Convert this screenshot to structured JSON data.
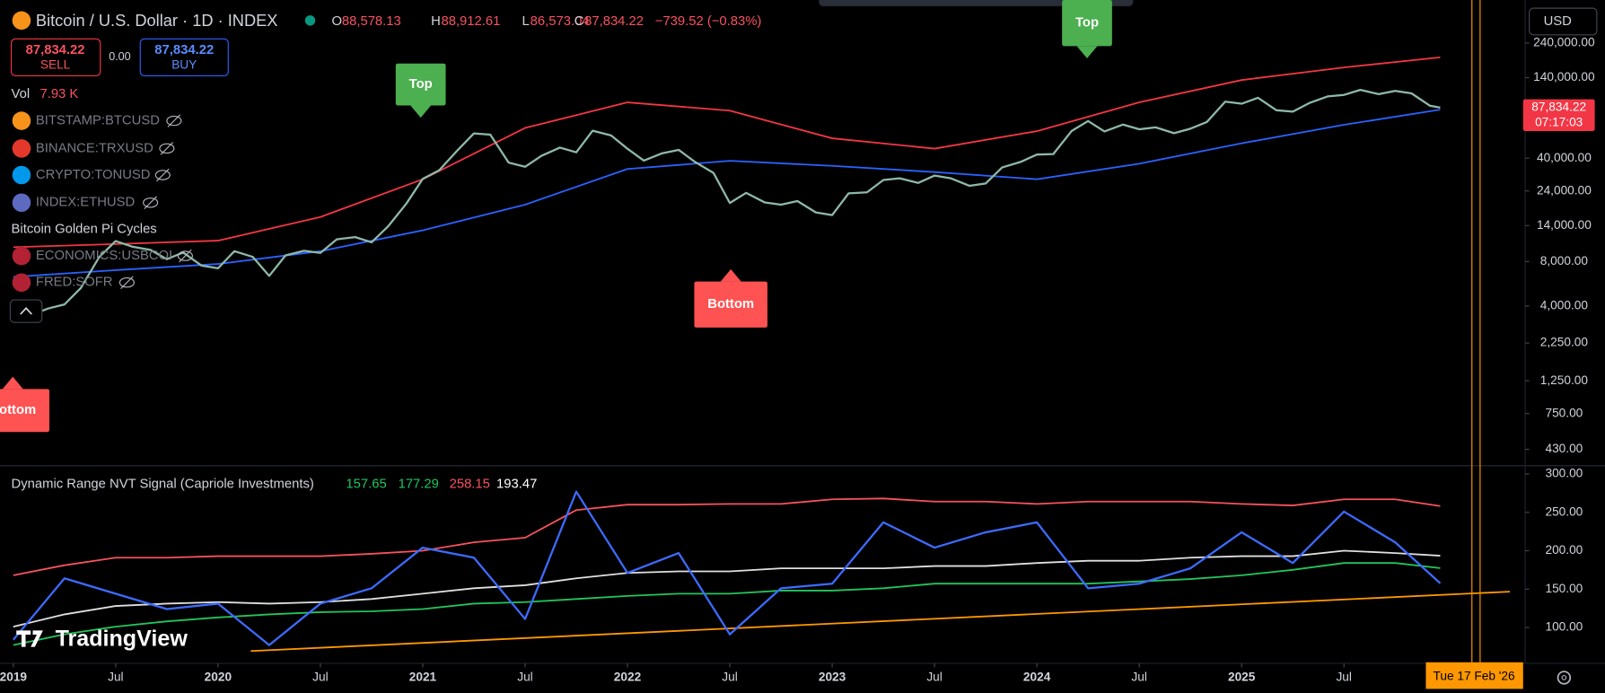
{
  "header": {
    "symbol": "Bitcoin / U.S. Dollar · 1D · INDEX",
    "open_label": "O",
    "open": "88,578.13",
    "high_label": "H",
    "high": "88,912.61",
    "low_label": "L",
    "low": "86,573.04",
    "close_label": "C",
    "close": "87,834.22",
    "change": "−739.52 (−0.83%)",
    "sell_price": "87,834.22",
    "sell": "SELL",
    "spread": "0.00",
    "buy_price": "87,834.22",
    "buy": "BUY",
    "volume_label": "Vol",
    "volume": "7.93 K",
    "currency": "USD",
    "price_tag": "87,834.22",
    "countdown": "07:17:03",
    "cursor_date": "Tue 17 Feb '26",
    "logo": "TradingView"
  },
  "overlays": [
    "BITSTAMP:BTCUSD",
    "BINANCE:TRXUSD",
    "CRYPTO:TONUSD",
    "INDEX:ETHUSD",
    "Bitcoin Golden Pi Cycles",
    "ECONOMICS:USBCOI",
    "FRED:SOFR"
  ],
  "chart_data": [
    {
      "type": "line",
      "log_scale": true,
      "grid": false,
      "xlim": [
        2018.935,
        2026.385
      ],
      "ylim": [
        333,
        469000
      ],
      "yticks": [
        {
          "value": 240000,
          "label": "240,000.00"
        },
        {
          "value": 140000,
          "label": "140,000.00"
        },
        {
          "value": 40000,
          "label": "40,000.00"
        },
        {
          "value": 24000,
          "label": "24,000.00"
        },
        {
          "value": 14000,
          "label": "14,000.00"
        },
        {
          "value": 8000,
          "label": "8,000.00"
        },
        {
          "value": 4000,
          "label": "4,000.00"
        },
        {
          "value": 2250,
          "label": "2,250.00"
        },
        {
          "value": 1250,
          "label": "1,250.00"
        },
        {
          "value": 750,
          "label": "750.00"
        },
        {
          "value": 430,
          "label": "430.00"
        }
      ],
      "series": [
        {
          "color": "#8fb9a8",
          "x": [
            2019,
            2019.08,
            2019.17,
            2019.25,
            2019.33,
            2019.42,
            2019.5,
            2019.58,
            2019.67,
            2019.75,
            2019.83,
            2019.92,
            2020,
            2020.08,
            2020.17,
            2020.25,
            2020.33,
            2020.42,
            2020.5,
            2020.58,
            2020.67,
            2020.75,
            2020.83,
            2020.92,
            2021,
            2021.08,
            2021.17,
            2021.25,
            2021.33,
            2021.42,
            2021.5,
            2021.58,
            2021.67,
            2021.75,
            2021.83,
            2021.92,
            2022,
            2022.08,
            2022.17,
            2022.25,
            2022.33,
            2022.42,
            2022.5,
            2022.58,
            2022.67,
            2022.75,
            2022.83,
            2022.92,
            2023,
            2023.08,
            2023.17,
            2023.25,
            2023.33,
            2023.42,
            2023.5,
            2023.58,
            2023.67,
            2023.75,
            2023.83,
            2023.92,
            2024,
            2024.08,
            2024.17,
            2024.25,
            2024.33,
            2024.42,
            2024.5,
            2024.58,
            2024.67,
            2024.75,
            2024.83,
            2024.92,
            2025,
            2025.08,
            2025.17,
            2025.25,
            2025.33,
            2025.42,
            2025.5,
            2025.58,
            2025.67,
            2025.75,
            2025.83,
            2025.92,
            2025.97
          ],
          "values": [
            3700,
            3450,
            3850,
            4100,
            5300,
            8600,
            11000,
            10100,
            9600,
            8300,
            9200,
            7500,
            7200,
            9400,
            8600,
            6400,
            8800,
            9450,
            9150,
            11300,
            11700,
            10800,
            13800,
            19700,
            29000,
            33100,
            45200,
            58800,
            57700,
            37300,
            35000,
            41500,
            47100,
            43800,
            61300,
            57000,
            46300,
            38500,
            43200,
            45500,
            37700,
            31800,
            19900,
            23300,
            20100,
            19400,
            20500,
            17200,
            16500,
            23100,
            23500,
            28500,
            29200,
            27200,
            30500,
            29200,
            26000,
            27000,
            34600,
            37700,
            42300,
            42600,
            61100,
            71300,
            60600,
            67500,
            62700,
            64600,
            59000,
            63300,
            70200,
            96400,
            93400,
            102400,
            84300,
            82500,
            94200,
            104600,
            107100,
            115800,
            108300,
            114000,
            109600,
            90400,
            87834.22
          ]
        },
        {
          "color": "#f23645",
          "x": [
            2019,
            2019.5,
            2020,
            2020.5,
            2021,
            2021.5,
            2022,
            2022.5,
            2023,
            2023.5,
            2024,
            2024.5,
            2025,
            2025.5,
            2025.97
          ],
          "values": [
            10000,
            10500,
            11070,
            16000,
            28800,
            64000,
            95300,
            83800,
            54500,
            46400,
            60900,
            95300,
            135000,
            164000,
            192000
          ]
        },
        {
          "color": "#2962ff",
          "x": [
            2019,
            2019.5,
            2020,
            2020.5,
            2021,
            2021.5,
            2022,
            2022.5,
            2023,
            2023.5,
            2024,
            2024.5,
            2025,
            2025.5,
            2025.97
          ],
          "values": [
            6300,
            7000,
            7700,
            9400,
            13000,
            19400,
            33800,
            38400,
            35500,
            32200,
            28800,
            36700,
            50400,
            67200,
            85100
          ]
        }
      ],
      "annotations": [
        {
          "text": "Top",
          "x": 2020.99,
          "color": "#4caf50"
        },
        {
          "text": "Top",
          "x": 2024.245,
          "color": "#4caf50"
        },
        {
          "text": "Bottom",
          "x": 2022.505,
          "color": "#ff5252"
        },
        {
          "text": "Bottom",
          "x": 2018.9975,
          "color": "#ff5252"
        }
      ]
    },
    {
      "type": "line",
      "title": "Dynamic Range NVT Signal (Capriole Investments)",
      "grid": false,
      "xlim": [
        2018.935,
        2026.385
      ],
      "ylim": [
        53.3,
        310.7
      ],
      "xticks": [
        2019,
        {
          "value": 2019.5,
          "label": "Jul"
        },
        2020,
        {
          "value": 2020.5,
          "label": "Jul"
        },
        2021,
        {
          "value": 2021.5,
          "label": "Jul"
        },
        2022,
        {
          "value": 2022.5,
          "label": "Jul"
        },
        2023,
        {
          "value": 2023.5,
          "label": "Jul"
        },
        2024,
        {
          "value": 2024.5,
          "label": "Jul"
        },
        2025,
        {
          "value": 2025.5,
          "label": "Jul"
        }
      ],
      "yticks": [
        {
          "value": 300,
          "label": "300.00"
        },
        {
          "value": 250,
          "label": "250.00"
        },
        {
          "value": 200,
          "label": "200.00"
        },
        {
          "value": 150,
          "label": "150.00"
        },
        {
          "value": 100,
          "label": "100.00"
        }
      ],
      "x": [
        2019,
        2019.25,
        2019.5,
        2019.75,
        2020,
        2020.25,
        2020.5,
        2020.75,
        2021,
        2021.25,
        2021.5,
        2021.75,
        2022,
        2022.25,
        2022.5,
        2022.75,
        2023,
        2023.25,
        2023.5,
        2023.75,
        2024,
        2024.25,
        2024.5,
        2024.75,
        2025,
        2025.25,
        2025.5,
        2025.75,
        2025.97
      ],
      "series": [
        {
          "color": "#3d6bff",
          "values": [
            84,
            164,
            144,
            124,
            131,
            77,
            131,
            151,
            204,
            191,
            111,
            277,
            171,
            197,
            91,
            151,
            157,
            237,
            204,
            224,
            237,
            151,
            157,
            177,
            224,
            184,
            251,
            211,
            157.65
          ]
        },
        {
          "color": "#22c55e",
          "values": [
            77,
            91,
            101,
            108,
            113,
            117,
            120,
            121,
            124,
            131,
            133,
            137,
            141,
            144,
            144,
            148,
            148,
            151,
            157,
            157,
            157,
            157,
            160,
            163,
            168,
            175,
            184,
            184,
            177.29
          ]
        },
        {
          "color": "#f7525f",
          "values": [
            168,
            181,
            191,
            191,
            193,
            193,
            193,
            196,
            200,
            211,
            217,
            253,
            260,
            260,
            261,
            261,
            267,
            268,
            264,
            264,
            261,
            264,
            264,
            264,
            261,
            259,
            267,
            267,
            258.15
          ]
        },
        {
          "color": "#e0e0e0",
          "values": [
            101,
            117,
            128,
            131,
            133,
            131,
            133,
            137,
            144,
            151,
            155,
            164,
            171,
            173,
            173,
            177,
            177,
            177,
            180,
            180,
            184,
            187,
            187,
            191,
            193,
            193,
            200,
            197,
            193.47
          ]
        },
        {
          "color": "#ff9800",
          "x": [
            2020.16,
            2026.31
          ],
          "values": [
            69.3,
            146.7
          ]
        }
      ]
    }
  ]
}
